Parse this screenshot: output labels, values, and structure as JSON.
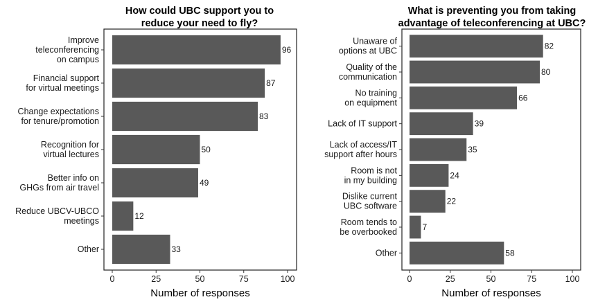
{
  "chart_data": [
    {
      "type": "bar",
      "orientation": "horizontal",
      "title": [
        "How could UBC support you to",
        "reduce your need to fly?"
      ],
      "categories": [
        [
          "Improve",
          "teleconferencing",
          "on campus"
        ],
        [
          "Financial support",
          "for virtual meetings"
        ],
        [
          "Change expectations",
          "for tenure/promotion"
        ],
        [
          "Recognition for",
          "virtual lectures"
        ],
        [
          "Better info on",
          "GHGs from air travel"
        ],
        [
          "Reduce UBCV-UBCO",
          "meetings"
        ],
        [
          "Other"
        ]
      ],
      "values": [
        96,
        87,
        83,
        50,
        49,
        12,
        33
      ],
      "xlabel": "Number of responses",
      "ylabel": "",
      "xlim": [
        0,
        100
      ],
      "xticks": [
        0,
        25,
        50,
        75,
        100
      ],
      "bar_color": "#595959",
      "grid": false
    },
    {
      "type": "bar",
      "orientation": "horizontal",
      "title": [
        "What is preventing you from taking",
        "advantage of teleconferencing at UBC?"
      ],
      "categories": [
        [
          "Unaware of",
          "options at UBC"
        ],
        [
          "Quality of the",
          "communication"
        ],
        [
          "No training",
          "on equipment"
        ],
        [
          "Lack of IT support"
        ],
        [
          "Lack of access/IT",
          "support after hours"
        ],
        [
          "Room is not",
          "in my building"
        ],
        [
          "Dislike current",
          "UBC software"
        ],
        [
          "Room tends to",
          "be overbooked"
        ],
        [
          "Other"
        ]
      ],
      "values": [
        82,
        80,
        66,
        39,
        35,
        24,
        22,
        7,
        58
      ],
      "xlabel": "Number of responses",
      "ylabel": "",
      "xlim": [
        0,
        100
      ],
      "xticks": [
        0,
        25,
        50,
        75,
        100
      ],
      "bar_color": "#595959",
      "grid": false
    }
  ]
}
